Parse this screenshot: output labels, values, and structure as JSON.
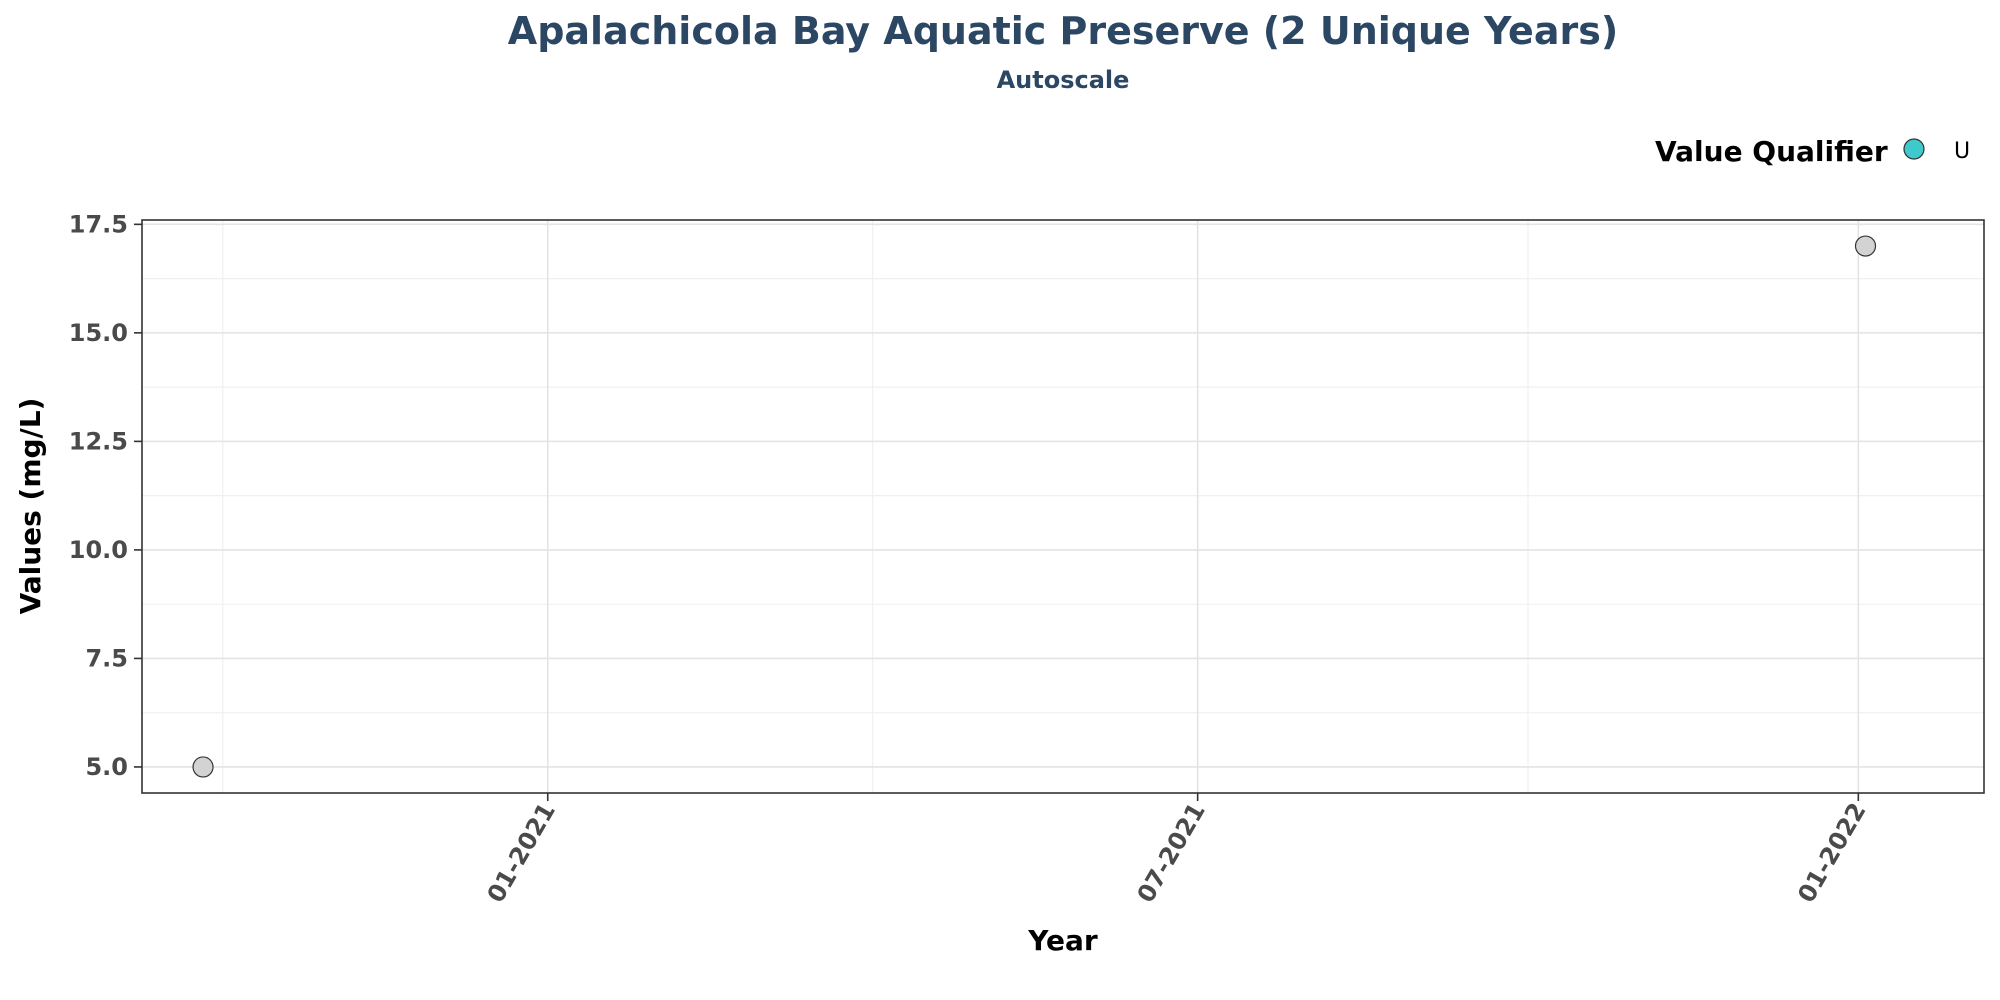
{
  "chart_data": {
    "type": "scatter",
    "title": "Apalachicola Bay Aquatic Preserve (2 Unique Years)",
    "subtitle": "Autoscale",
    "xlabel": "Year",
    "ylabel": "Values (mg/L)",
    "x_tick_labels": [
      "01-2021",
      "07-2021",
      "01-2022"
    ],
    "x_tick_dates": [
      "2021-01-01",
      "2021-07-01",
      "2022-01-01"
    ],
    "x_range": [
      "2020-09-10",
      "2022-02-05"
    ],
    "y_ticks": [
      5.0,
      7.5,
      10.0,
      12.5,
      15.0,
      17.5
    ],
    "y_tick_labels": [
      "5.0",
      "7.5",
      "10.0",
      "12.5",
      "15.0",
      "17.5"
    ],
    "ylim": [
      4.4,
      17.6
    ],
    "grid": true,
    "legend": {
      "title": "Value Qualifier",
      "position": "top-right",
      "entries": [
        {
          "label": "U",
          "color": "#3ec9cc"
        }
      ]
    },
    "series": [
      {
        "point_color": "#d3d3d3",
        "points": [
          {
            "x": "2020-09-27",
            "y": 5.0
          },
          {
            "x": "2022-01-03",
            "y": 17.0
          }
        ]
      }
    ]
  }
}
